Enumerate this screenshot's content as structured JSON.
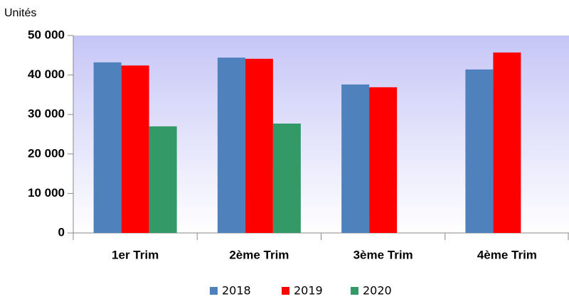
{
  "chart_data": {
    "type": "bar",
    "y_label": "Unités",
    "categories": [
      "1er Trim",
      "2ème Trim",
      "3ème Trim",
      "4ème Trim"
    ],
    "series": [
      {
        "name": "2018",
        "color": "#4f81bd",
        "values": [
          43200,
          44400,
          37600,
          41400
        ]
      },
      {
        "name": "2019",
        "color": "#ff0000",
        "values": [
          42400,
          44100,
          36900,
          45700
        ]
      },
      {
        "name": "2020",
        "color": "#339966",
        "values": [
          27000,
          27700,
          null,
          null
        ]
      }
    ],
    "ylim": [
      0,
      50000
    ],
    "yticks": [
      {
        "value": 0,
        "label": "0"
      },
      {
        "value": 10000,
        "label": "10 000"
      },
      {
        "value": 20000,
        "label": "20 000"
      },
      {
        "value": 30000,
        "label": "30 000"
      },
      {
        "value": 40000,
        "label": "40 000"
      },
      {
        "value": 50000,
        "label": "50 000"
      }
    ],
    "legend": "bottom"
  }
}
